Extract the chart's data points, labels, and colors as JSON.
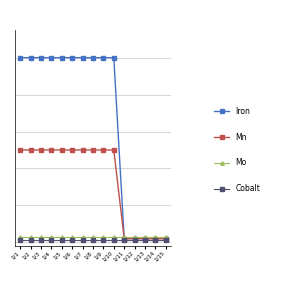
{
  "title": "",
  "x_labels": [
    "1/1",
    "1/2",
    "1/3",
    "1/4",
    "1/5",
    "1/6",
    "1/7",
    "1/8",
    "1/9",
    "1/10",
    "1/11",
    "1/12",
    "1/13",
    "1/14",
    "1/15"
  ],
  "n_points_before_drop": 10,
  "n_points_total": 15,
  "iron_high": 100,
  "iron_low": 2,
  "mn_high": 50,
  "mn_low": 2,
  "mo_value": 3,
  "cobalt_value": 1,
  "iron_color": "#4472C4",
  "mn_color": "#C0504D",
  "mo_color": "#9BBB59",
  "cobalt_color": "#4F4F6F",
  "background_color": "#FFFFFF",
  "grid_color": "#D0D0D0",
  "legend_labels": [
    "Iron",
    "Mn",
    "Mo",
    "Cobalt"
  ],
  "ylim": [
    -2,
    115
  ],
  "xlim": [
    -0.5,
    14.5
  ],
  "figsize": [
    3.0,
    3.0
  ],
  "dpi": 100
}
